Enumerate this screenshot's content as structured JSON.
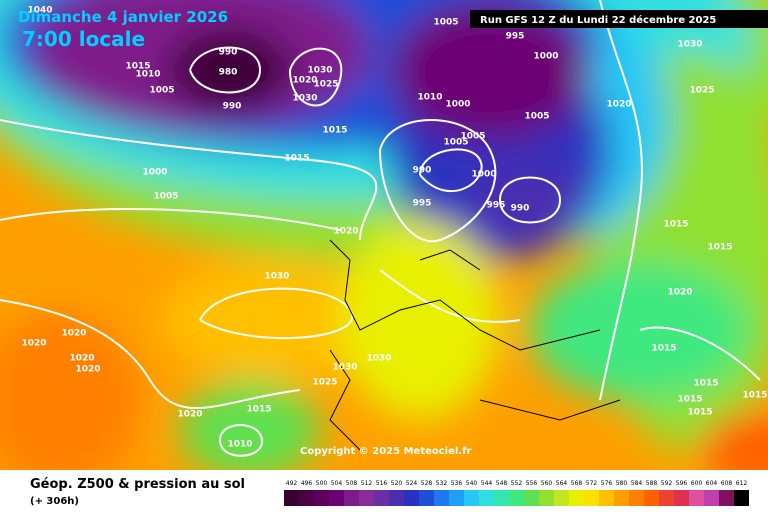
{
  "header": {
    "date": "Dimanche 4 janvier 2026",
    "time": "7:00 locale",
    "run": "Run GFS 12 Z du Lundi 22 décembre 2025"
  },
  "copyright": "Copyright © 2025 Meteociel.fr",
  "footer": {
    "title": "Géop. Z500 & pression au sol",
    "lead": "(+ 306h)"
  },
  "isobar_labels": [
    1040,
    1005,
    990,
    980,
    1015,
    1010,
    1005,
    990,
    1030,
    1020,
    1025,
    1030,
    1015,
    1015,
    1000,
    1005,
    1010,
    1000,
    995,
    1000,
    1005,
    1005,
    1005,
    990,
    1000,
    995,
    995,
    990,
    1030,
    1025,
    1020,
    1020,
    1030,
    1015,
    1015,
    1020,
    1020,
    1020,
    1020,
    1020,
    1030,
    1030,
    1025,
    1015,
    1015,
    1015,
    1015,
    1015,
    1015,
    1020,
    1010
  ],
  "scale": {
    "values": [
      492,
      496,
      500,
      504,
      508,
      512,
      516,
      520,
      524,
      528,
      532,
      536,
      540,
      544,
      548,
      552,
      556,
      560,
      564,
      568,
      572,
      576,
      580,
      584,
      588,
      592,
      596,
      600,
      604,
      608,
      612
    ],
    "colors": [
      "#3a0030",
      "#4b0046",
      "#5c005c",
      "#6d0073",
      "#7f1a8a",
      "#8a2b9c",
      "#6a2fa5",
      "#4a2fb0",
      "#2a30c0",
      "#1e4ed8",
      "#1e78f0",
      "#20a0f5",
      "#28c8f5",
      "#30e0e0",
      "#30e8b0",
      "#40e880",
      "#60e050",
      "#90e030",
      "#c0e820",
      "#e8f000",
      "#ffe000",
      "#ffc000",
      "#ffa000",
      "#ff8000",
      "#ff6000",
      "#f04030",
      "#e03050",
      "#e050a0",
      "#c040b0",
      "#801060",
      "#000000"
    ]
  }
}
